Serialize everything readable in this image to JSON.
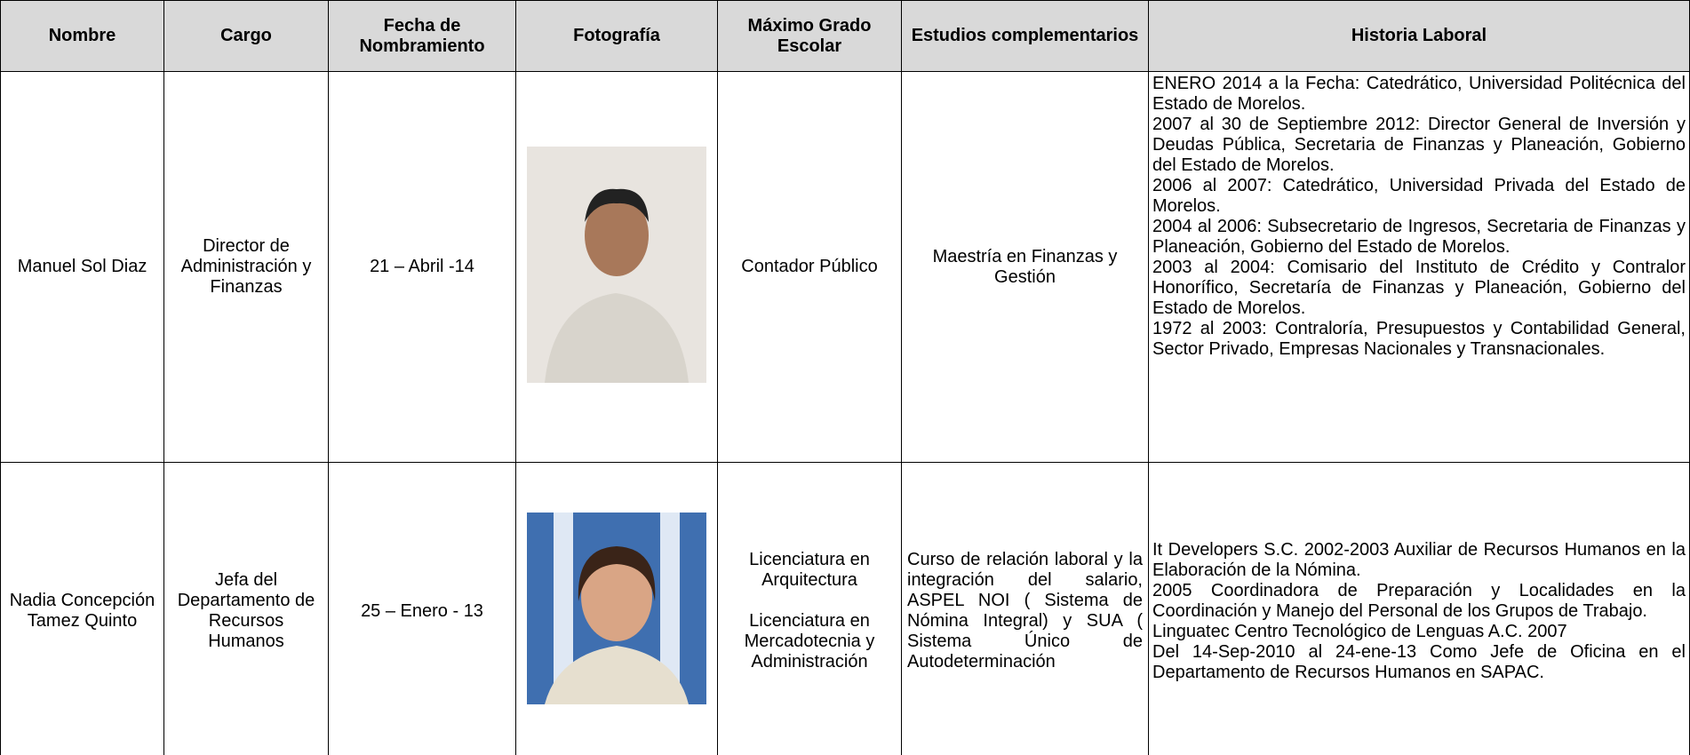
{
  "table": {
    "headers": [
      "Nombre",
      "Cargo",
      "Fecha de Nombramiento",
      "Fotografía",
      "Máximo Grado Escolar",
      "Estudios complementarios",
      "Historia Laboral"
    ],
    "rows": [
      {
        "nombre": "Manuel Sol Diaz",
        "cargo": "Director de Administración y Finanzas",
        "fecha": "21 – Abril -14",
        "grado": [
          "Contador Público"
        ],
        "estudios": "Maestría en Finanzas y Gestión",
        "historia": [
          "ENERO 2014 a la Fecha: Catedrático, Universidad Politécnica del Estado de Morelos.",
          "2007 al 30 de Septiembre 2012: Director General de Inversión y Deudas Pública, Secretaria de Finanzas y Planeación, Gobierno del Estado de Morelos.",
          "2006 al 2007: Catedrático, Universidad Privada del Estado de Morelos.",
          "2004 al 2006: Subsecretario de Ingresos, Secretaria de Finanzas y Planeación, Gobierno del Estado de Morelos.",
          "2003 al 2004: Comisario del Instituto de Crédito y Contralor Honorífico, Secretaría de Finanzas y Planeación, Gobierno del Estado de Morelos.",
          "1972 al 2003: Contraloría, Presupuestos y Contabilidad General, Sector Privado, Empresas Nacionales y Transnacionales."
        ]
      },
      {
        "nombre": "Nadia Concepción Tamez Quinto",
        "cargo": "Jefa del Departamento de Recursos Humanos",
        "fecha": "25 – Enero - 13",
        "grado": [
          "Licenciatura en Arquitectura",
          "Licenciatura en Mercadotecnia y Administración"
        ],
        "estudios": "Curso de relación laboral y la integración del salario, ASPEL NOI ( Sistema de Nómina Integral) y SUA ( Sistema Único de Autodeterminación",
        "historia": [
          "It Developers S.C.  2002-2003 Auxiliar de Recursos Humanos en la Elaboración de la Nómina.",
          "2005 Coordinadora  de Preparación y Localidades en la Coordinación y Manejo del Personal de los  Grupos de Trabajo.",
          "Linguatec  Centro Tecnológico de Lenguas A.C. 2007",
          "Del 14-Sep-2010 al 24-ene-13 Como Jefe de Oficina en el Departamento de Recursos Humanos en SAPAC."
        ]
      }
    ]
  }
}
